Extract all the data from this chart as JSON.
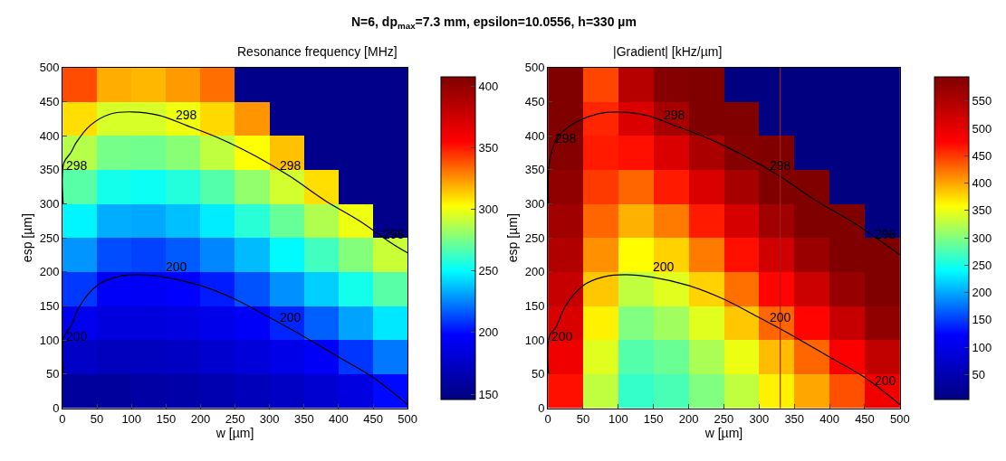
{
  "chart_data": [
    {
      "type": "heatmap",
      "title": "Resonance frequency [MHz]",
      "xlabel": "w [µm]",
      "ylabel": "esp [µm]",
      "x": [
        25,
        75,
        125,
        175,
        225,
        275,
        325,
        375,
        425,
        475
      ],
      "y": [
        475,
        425,
        375,
        325,
        275,
        225,
        175,
        125,
        75,
        25
      ],
      "cells": [
        [
          340,
          320,
          318,
          324,
          333,
          150,
          150,
          150,
          150,
          150
        ],
        [
          310,
          295,
          295,
          300,
          311,
          325,
          150,
          150,
          150,
          150
        ],
        [
          288,
          275,
          274,
          279,
          290,
          303,
          316,
          150,
          150,
          150
        ],
        [
          269,
          255,
          253,
          258,
          268,
          281,
          294,
          310,
          150,
          150
        ],
        [
          249,
          234,
          233,
          238,
          247,
          259,
          272,
          287,
          300,
          150
        ],
        [
          229,
          214,
          212,
          217,
          226,
          237,
          250,
          264,
          278,
          292
        ],
        [
          210,
          196,
          195,
          198,
          204,
          215,
          228,
          241,
          255,
          269
        ],
        [
          192,
          184,
          184,
          186,
          190,
          196,
          206,
          218,
          232,
          246
        ],
        [
          175,
          171,
          172,
          174,
          178,
          183,
          189,
          196,
          209,
          223
        ],
        [
          158,
          158,
          161,
          163,
          166,
          170,
          174,
          179,
          186,
          200
        ]
      ],
      "colors": [
        "#000080",
        "#0000ff",
        "#00ffff",
        "#ffff00",
        "#ff0000",
        "#800000"
      ],
      "clim": [
        146,
        408
      ],
      "cticks": [
        150,
        200,
        250,
        300,
        350,
        400
      ],
      "xlim": [
        0,
        500
      ],
      "xticks": [
        0,
        50,
        100,
        150,
        200,
        250,
        300,
        350,
        400,
        450,
        500
      ],
      "ylim": [
        0,
        500
      ],
      "yticks": [
        0,
        50,
        100,
        150,
        200,
        250,
        300,
        350,
        400,
        450,
        500
      ],
      "series": [
        {
          "type": "line",
          "color": "#000000",
          "x": [
            1,
            2,
            12,
            20,
            40,
            70,
            100,
            140,
            180,
            230,
            280,
            330,
            380,
            430,
            480,
            500
          ],
          "values": [
            300,
            360,
            375,
            390,
            415,
            432,
            435,
            430,
            415,
            395,
            370,
            340,
            305,
            275,
            240,
            228
          ]
        },
        {
          "type": "line",
          "color": "#000000",
          "x": [
            1,
            2,
            12,
            25,
            50,
            80,
            110,
            150,
            200,
            250,
            300,
            350,
            400,
            450,
            500
          ],
          "values": [
            50,
            105,
            120,
            150,
            180,
            193,
            196,
            192,
            180,
            160,
            133,
            105,
            75,
            45,
            5
          ]
        }
      ],
      "annotations": [
        "N=6, dp$_{max}$=7.3 mm, epsilon=10.0556, h=330 µm",
        {
          "text": "298",
          "x": 180,
          "y": 415
        },
        {
          "text": "298",
          "x": 330,
          "y": 340
        },
        {
          "text": "298",
          "x": 480,
          "y": 240
        },
        {
          "text": "298",
          "x": 2,
          "y": 340
        },
        {
          "text": "200",
          "x": 165,
          "y": 192
        },
        {
          "text": "200",
          "x": 330,
          "y": 118
        },
        {
          "text": "200",
          "x": 2,
          "y": 90
        }
      ]
    },
    {
      "type": "heatmap",
      "title": "|Gradient| [kHz/µm]",
      "xlabel": "w [µm]",
      "ylabel": "esp [µm]",
      "x": [
        25,
        75,
        125,
        175,
        225,
        275,
        325,
        375,
        425,
        475
      ],
      "y": [
        475,
        425,
        375,
        325,
        275,
        225,
        175,
        125,
        75,
        25
      ],
      "cells": [
        [
          595,
          445,
          545,
          590,
          595,
          5,
          5,
          5,
          5,
          5
        ],
        [
          595,
          460,
          510,
          560,
          595,
          595,
          5,
          5,
          5,
          5
        ],
        [
          590,
          465,
          470,
          510,
          555,
          590,
          595,
          5,
          5,
          5
        ],
        [
          580,
          450,
          430,
          465,
          510,
          560,
          595,
          595,
          5,
          5
        ],
        [
          565,
          430,
          395,
          420,
          465,
          515,
          565,
          595,
          595,
          5
        ],
        [
          550,
          410,
          360,
          380,
          420,
          470,
          520,
          570,
          595,
          595
        ],
        [
          530,
          385,
          330,
          345,
          380,
          425,
          475,
          525,
          575,
          595
        ],
        [
          510,
          365,
          300,
          315,
          345,
          385,
          430,
          475,
          530,
          580
        ],
        [
          490,
          345,
          280,
          290,
          320,
          350,
          390,
          430,
          480,
          535
        ],
        [
          470,
          330,
          265,
          275,
          300,
          330,
          365,
          400,
          440,
          490
        ]
      ],
      "colors": [
        "#000080",
        "#0000ff",
        "#00ffff",
        "#ffff00",
        "#ff0000",
        "#800000"
      ],
      "clim": [
        5,
        595
      ],
      "cticks": [
        50,
        100,
        150,
        200,
        250,
        300,
        350,
        400,
        450,
        500,
        550
      ],
      "xlim": [
        0,
        500
      ],
      "xticks": [
        0,
        50,
        100,
        150,
        200,
        250,
        300,
        350,
        400,
        450,
        500
      ],
      "ylim": [
        0,
        500
      ],
      "yticks": [
        0,
        50,
        100,
        150,
        200,
        250,
        300,
        350,
        400,
        450,
        500
      ],
      "series": [
        {
          "type": "line",
          "color": "#000000",
          "x": [
            1,
            2,
            12,
            20,
            40,
            70,
            100,
            140,
            180,
            230,
            280,
            330,
            380,
            430,
            480,
            500
          ],
          "values": [
            300,
            360,
            395,
            405,
            420,
            432,
            435,
            430,
            415,
            395,
            370,
            340,
            305,
            275,
            240,
            225
          ]
        },
        {
          "type": "line",
          "color": "#000000",
          "x": [
            1,
            2,
            12,
            25,
            50,
            80,
            110,
            150,
            200,
            250,
            300,
            350,
            400,
            450,
            500
          ],
          "values": [
            50,
            105,
            120,
            150,
            180,
            193,
            196,
            192,
            180,
            160,
            133,
            105,
            75,
            45,
            5
          ]
        }
      ],
      "ref_lines": [
        {
          "axis": "x",
          "value": 330,
          "color": "#a02020"
        }
      ],
      "annotations": [
        {
          "text": "298",
          "x": 180,
          "y": 415
        },
        {
          "text": "298",
          "x": 330,
          "y": 340
        },
        {
          "text": "298",
          "x": 480,
          "y": 240
        },
        {
          "text": "298",
          "x": 8,
          "y": 380
        },
        {
          "text": "200",
          "x": 165,
          "y": 192
        },
        {
          "text": "200",
          "x": 330,
          "y": 118
        },
        {
          "text": "200",
          "x": 480,
          "y": 25
        },
        {
          "text": "200",
          "x": 2,
          "y": 90
        }
      ]
    }
  ]
}
